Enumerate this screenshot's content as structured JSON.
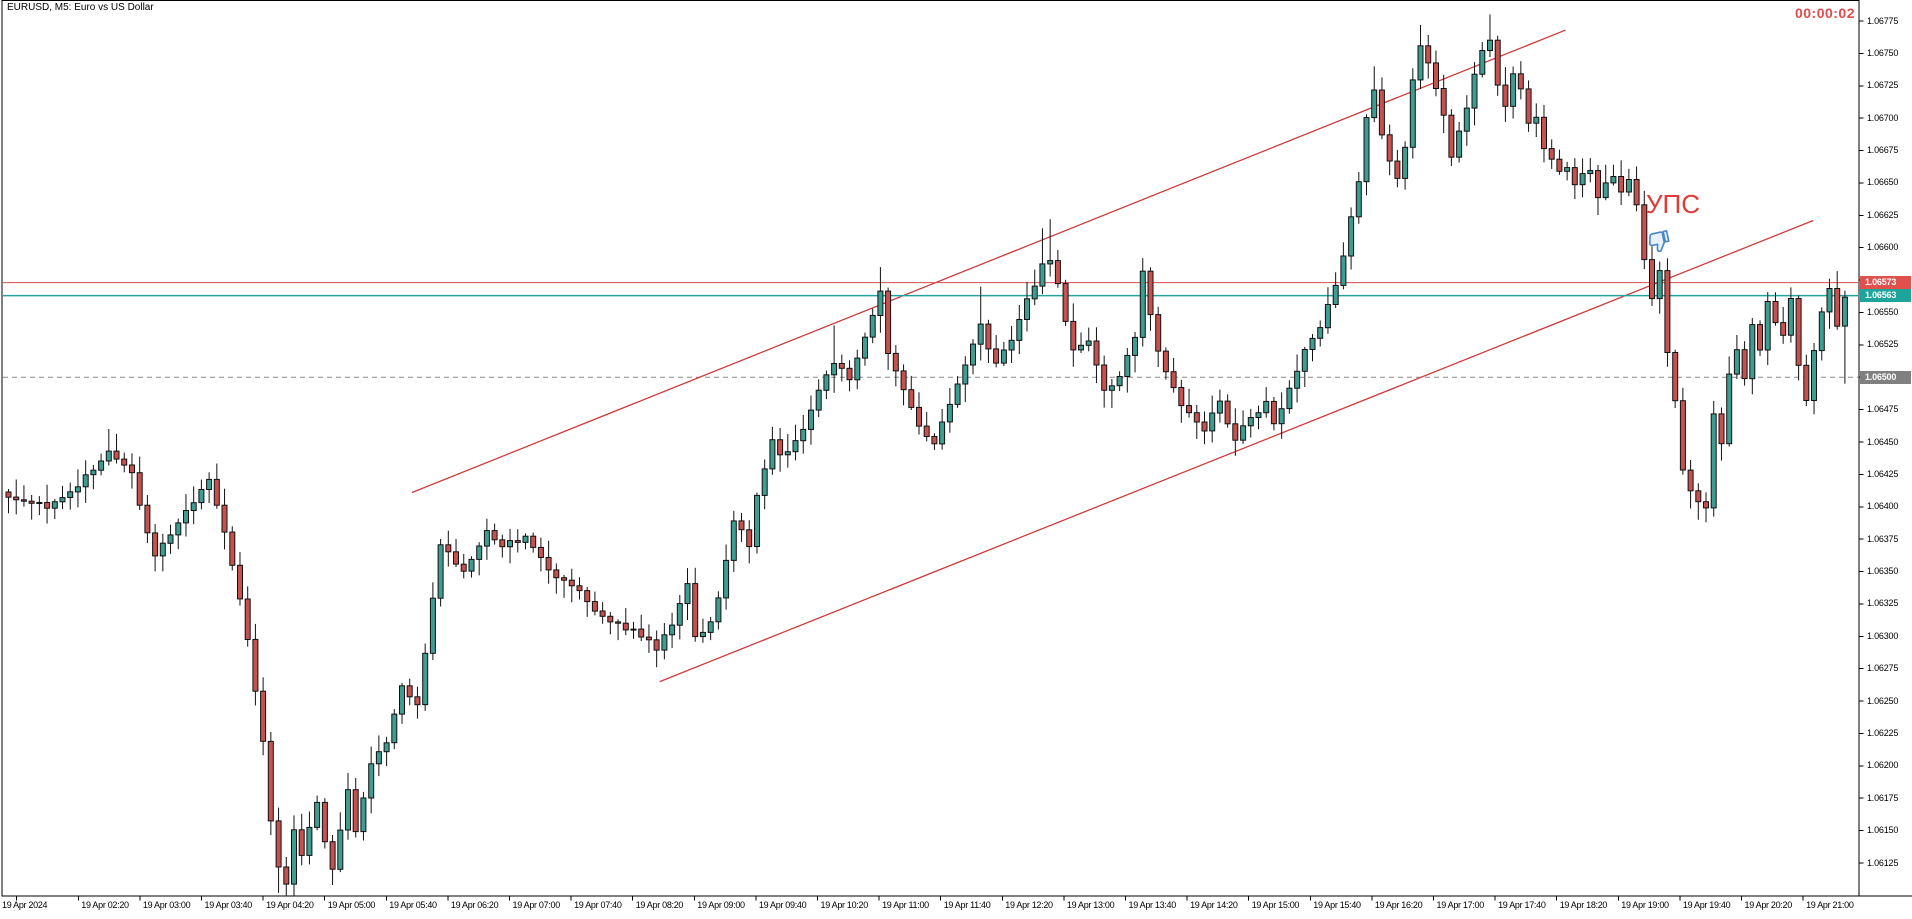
{
  "header": {
    "title": "EURUSD, M5: Euro vs US Dollar",
    "timer": "00:00:02",
    "timer_color": "#E24C4C"
  },
  "annotations": {
    "label": "УПС",
    "label_color": "#E13B37",
    "thumbs_down_icon": "thumbs-down",
    "thumbs_down_color": "#4A86C8"
  },
  "price_labels": {
    "ask": {
      "text": "1.06573",
      "bg": "#E0504C"
    },
    "bid": {
      "text": "1.06563",
      "bg": "#1FA49C"
    },
    "day_open": {
      "text": "1.06500",
      "bg": "#808080"
    }
  },
  "chart_data": {
    "type": "candlestick",
    "symbol": "EURUSD",
    "timeframe": "M5",
    "title": "EURUSD, M5: Euro vs US Dollar",
    "ask": 1.06573,
    "bid": 1.06563,
    "open_line": 1.065,
    "y_axis": {
      "min": 1.06125,
      "max": 1.06775,
      "step": 0.00025,
      "ticks": [
        "1.06775",
        "1.06750",
        "1.06725",
        "1.06700",
        "1.06675",
        "1.06650",
        "1.06625",
        "1.06600",
        "1.06575",
        "1.06550",
        "1.06525",
        "1.06500",
        "1.06475",
        "1.06450",
        "1.06425",
        "1.06400",
        "1.06375",
        "1.06350",
        "1.06325",
        "1.06300",
        "1.06275",
        "1.06250",
        "1.06225",
        "1.06200",
        "1.06175",
        "1.06150",
        "1.06125"
      ]
    },
    "x_axis": {
      "labels": [
        "19 Apr 2024",
        "19 Apr 02:20",
        "19 Apr 03:00",
        "19 Apr 03:40",
        "19 Apr 04:20",
        "19 Apr 05:00",
        "19 Apr 05:40",
        "19 Apr 06:20",
        "19 Apr 07:00",
        "19 Apr 07:40",
        "19 Apr 08:20",
        "19 Apr 09:00",
        "19 Apr 09:40",
        "19 Apr 10:20",
        "19 Apr 11:00",
        "19 Apr 11:40",
        "19 Apr 12:20",
        "19 Apr 13:00",
        "19 Apr 13:40",
        "19 Apr 14:20",
        "19 Apr 15:00",
        "19 Apr 15:40",
        "19 Apr 16:20",
        "19 Apr 17:00",
        "19 Apr 17:40",
        "19 Apr 18:20",
        "19 Apr 19:00",
        "19 Apr 19:40",
        "19 Apr 20:20",
        "19 Apr 21:00"
      ]
    },
    "num_bars": 239,
    "close_waypoints": [
      [
        0,
        1.06405
      ],
      [
        5,
        1.064
      ],
      [
        8,
        1.0641
      ],
      [
        13,
        1.06442
      ],
      [
        16,
        1.06425
      ],
      [
        19,
        1.0636
      ],
      [
        22,
        1.0639
      ],
      [
        26,
        1.0642
      ],
      [
        28,
        1.0638
      ],
      [
        29,
        1.06355
      ],
      [
        31,
        1.063
      ],
      [
        33,
        1.0622
      ],
      [
        34,
        1.0616
      ],
      [
        35,
        1.0612
      ],
      [
        36,
        1.0611
      ],
      [
        37,
        1.0615
      ],
      [
        38,
        1.0613
      ],
      [
        40,
        1.0617
      ],
      [
        41,
        1.0614
      ],
      [
        42,
        1.0612
      ],
      [
        43,
        1.0615
      ],
      [
        44,
        1.0618
      ],
      [
        45,
        1.0615
      ],
      [
        47,
        1.062
      ],
      [
        49,
        1.0622
      ],
      [
        51,
        1.0626
      ],
      [
        53,
        1.06245
      ],
      [
        56,
        1.0637
      ],
      [
        59,
        1.0635
      ],
      [
        62,
        1.0638
      ],
      [
        64,
        1.0637
      ],
      [
        67,
        1.06375
      ],
      [
        70,
        1.0635
      ],
      [
        73,
        1.0634
      ],
      [
        76,
        1.0632
      ],
      [
        79,
        1.0631
      ],
      [
        82,
        1.063
      ],
      [
        84,
        1.0629
      ],
      [
        86,
        1.0631
      ],
      [
        88,
        1.0634
      ],
      [
        89,
        1.063
      ],
      [
        91,
        1.0631
      ],
      [
        92,
        1.0633
      ],
      [
        93,
        1.0636
      ],
      [
        94,
        1.0639
      ],
      [
        95,
        1.0638
      ],
      [
        96,
        1.0637
      ],
      [
        97,
        1.0641
      ],
      [
        98,
        1.0643
      ],
      [
        99,
        1.0645
      ],
      [
        100,
        1.0644
      ],
      [
        101,
        1.0644
      ],
      [
        103,
        1.0646
      ],
      [
        105,
        1.0649
      ],
      [
        107,
        1.0651
      ],
      [
        109,
        1.065
      ],
      [
        111,
        1.0653
      ],
      [
        112,
        1.0655
      ],
      [
        113,
        1.06565
      ],
      [
        114,
        1.0652
      ],
      [
        116,
        1.0649
      ],
      [
        118,
        1.0646
      ],
      [
        120,
        1.0645
      ],
      [
        122,
        1.0648
      ],
      [
        124,
        1.0651
      ],
      [
        126,
        1.0654
      ],
      [
        127,
        1.0652
      ],
      [
        128,
        1.0651
      ],
      [
        130,
        1.0653
      ],
      [
        132,
        1.0656
      ],
      [
        134,
        1.06585
      ],
      [
        135,
        1.0659
      ],
      [
        136,
        1.0657
      ],
      [
        138,
        1.0652
      ],
      [
        140,
        1.0653
      ],
      [
        142,
        1.0649
      ],
      [
        144,
        1.065
      ],
      [
        146,
        1.0653
      ],
      [
        147,
        1.0658
      ],
      [
        149,
        1.0652
      ],
      [
        152,
        1.0648
      ],
      [
        155,
        1.0646
      ],
      [
        157,
        1.0648
      ],
      [
        159,
        1.0645
      ],
      [
        161,
        1.0647
      ],
      [
        163,
        1.0648
      ],
      [
        164,
        1.06465
      ],
      [
        166,
        1.0649
      ],
      [
        168,
        1.06523
      ],
      [
        170,
        1.06537
      ],
      [
        171,
        1.06556
      ],
      [
        172,
        1.0657
      ],
      [
        173,
        1.06594
      ],
      [
        174,
        1.06622
      ],
      [
        175,
        1.0665
      ],
      [
        176,
        1.06702
      ],
      [
        177,
        1.06721
      ],
      [
        178,
        1.06688
      ],
      [
        179,
        1.06669
      ],
      [
        180,
        1.06655
      ],
      [
        181,
        1.06678
      ],
      [
        182,
        1.0673
      ],
      [
        183,
        1.06754
      ],
      [
        184,
        1.06741
      ],
      [
        185,
        1.06721
      ],
      [
        186,
        1.06702
      ],
      [
        187,
        1.06669
      ],
      [
        188,
        1.06688
      ],
      [
        189,
        1.06707
      ],
      [
        190,
        1.06735
      ],
      [
        191,
        1.0675
      ],
      [
        192,
        1.06758
      ],
      [
        193,
        1.06725
      ],
      [
        194,
        1.06711
      ],
      [
        195,
        1.06735
      ],
      [
        196,
        1.06721
      ],
      [
        197,
        1.06697
      ],
      [
        198,
        1.06702
      ],
      [
        199,
        1.06678
      ],
      [
        200,
        1.06669
      ],
      [
        201,
        1.0666
      ],
      [
        202,
        1.06664
      ],
      [
        203,
        1.0665
      ],
      [
        204,
        1.06655
      ],
      [
        205,
        1.0666
      ],
      [
        206,
        1.0664
      ],
      [
        207,
        1.0665
      ],
      [
        208,
        1.06655
      ],
      [
        209,
        1.06645
      ],
      [
        210,
        1.06655
      ],
      [
        211,
        1.06635
      ],
      [
        212,
        1.0659
      ],
      [
        213,
        1.0656
      ],
      [
        214,
        1.0658
      ],
      [
        215,
        1.0652
      ],
      [
        216,
        1.0648
      ],
      [
        217,
        1.0643
      ],
      [
        218,
        1.0641
      ],
      [
        219,
        1.06405
      ],
      [
        220,
        1.064
      ],
      [
        221,
        1.0647
      ],
      [
        222,
        1.0645
      ],
      [
        223,
        1.065
      ],
      [
        224,
        1.0652
      ],
      [
        225,
        1.065
      ],
      [
        226,
        1.0654
      ],
      [
        227,
        1.0652
      ],
      [
        228,
        1.0656
      ],
      [
        229,
        1.0654
      ],
      [
        230,
        1.0653
      ],
      [
        231,
        1.0656
      ],
      [
        232,
        1.0651
      ],
      [
        233,
        1.0648
      ],
      [
        234,
        1.0652
      ],
      [
        235,
        1.0655
      ],
      [
        236,
        1.0657
      ],
      [
        237,
        1.0654
      ],
      [
        238,
        1.06563
      ]
    ],
    "wick_overrides": [
      {
        "bar": 13,
        "high": 1.0646
      },
      {
        "bar": 35,
        "low": 1.06102
      },
      {
        "bar": 36,
        "low": 1.061
      },
      {
        "bar": 42,
        "low": 1.06108
      },
      {
        "bar": 107,
        "high": 1.0654
      },
      {
        "bar": 113,
        "high": 1.06585
      },
      {
        "bar": 126,
        "high": 1.0657
      },
      {
        "bar": 134,
        "high": 1.06615
      },
      {
        "bar": 135,
        "high": 1.06622
      },
      {
        "bar": 147,
        "high": 1.06592
      },
      {
        "bar": 177,
        "high": 1.0674
      },
      {
        "bar": 183,
        "high": 1.06772
      },
      {
        "bar": 192,
        "high": 1.0678
      },
      {
        "bar": 219,
        "low": 1.0639
      },
      {
        "bar": 220,
        "low": 1.06388
      },
      {
        "bar": 238,
        "low": 1.06495
      }
    ],
    "trendlines": [
      {
        "name": "channel-upper",
        "from_bar": 52.3,
        "from_price": 1.06411,
        "to_bar": 201.8,
        "to_price": 1.06768,
        "color": "#CE3B3B"
      },
      {
        "name": "channel-lower",
        "from_bar": 84.4,
        "from_price": 1.06265,
        "to_bar": 233.9,
        "to_price": 1.06621,
        "color": "#CE3B3B"
      }
    ],
    "colors": {
      "bull_body": "#3C9D90",
      "bear_body": "#C6524F",
      "candle_border": "#111111",
      "wick": "#111111",
      "ask_line": "#DB4D4D",
      "bid_line": "#20A49C",
      "open_line_dash": "#8C8C8C",
      "axis": "#000000",
      "background": "#FFFFFF"
    },
    "legend_position": "none",
    "grid": false
  }
}
